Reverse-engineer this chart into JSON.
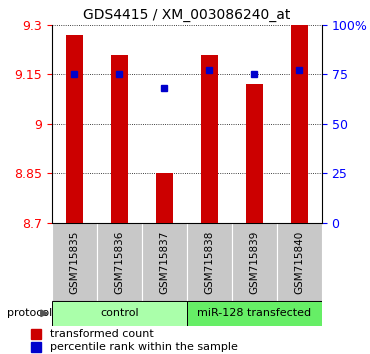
{
  "title": "GDS4415 / XM_003086240_at",
  "samples": [
    "GSM715835",
    "GSM715836",
    "GSM715837",
    "GSM715838",
    "GSM715839",
    "GSM715840"
  ],
  "bar_values": [
    9.27,
    9.21,
    8.85,
    9.21,
    9.12,
    9.3
  ],
  "blue_values": [
    75,
    75,
    68,
    77,
    75,
    77
  ],
  "ylim": [
    8.7,
    9.3
  ],
  "yticks": [
    8.7,
    8.85,
    9.0,
    9.15,
    9.3
  ],
  "ytick_labels_left": [
    "8.7",
    "8.85",
    "9",
    "9.15",
    "9.3"
  ],
  "ytick_labels_right": [
    "0",
    "25",
    "50",
    "75",
    "100%"
  ],
  "bar_color": "#cc0000",
  "blue_color": "#0000cc",
  "control_color": "#aaffaa",
  "transfected_color": "#66ee66",
  "sample_bg": "#c8c8c8",
  "group_labels": [
    "control",
    "miR-128 transfected"
  ],
  "legend_bar_label": "transformed count",
  "legend_blue_label": "percentile rank within the sample",
  "protocol_label": "protocol",
  "background_color": "#ffffff"
}
